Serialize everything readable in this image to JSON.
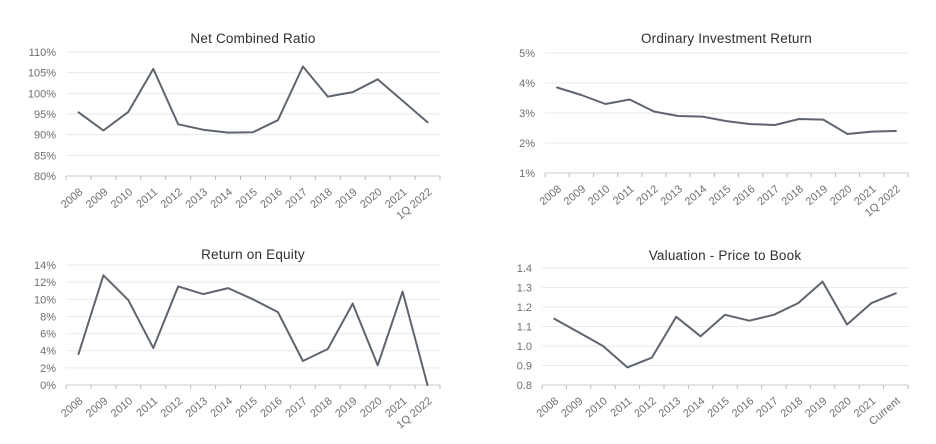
{
  "page": {
    "background": "#ffffff"
  },
  "styles": {
    "line_color": "#5e656e",
    "grid_color": "#e8eaeb",
    "axis_color": "#c9cccd",
    "tick_color": "#b6babc",
    "title_color": "#2e2e2e",
    "label_color": "#6f6f6f"
  },
  "chart_data": [
    {
      "type": "line",
      "title": "Net Combined Ratio",
      "categories": [
        "2008",
        "2009",
        "2010",
        "2011",
        "2012",
        "2013",
        "2014",
        "2015",
        "2016",
        "2017",
        "2018",
        "2019",
        "2020",
        "2021",
        "1Q 2022"
      ],
      "values": [
        95.4,
        91.0,
        95.5,
        105.9,
        92.5,
        91.2,
        90.5,
        90.6,
        93.5,
        106.5,
        99.2,
        100.3,
        103.4,
        98.2,
        93.0
      ],
      "xlabel": "",
      "ylabel": "",
      "ylim": [
        80,
        110
      ],
      "y_tick_values": [
        110,
        105,
        100,
        95,
        90,
        85,
        80
      ],
      "y_tick_labels": [
        "110%",
        "105%",
        "100%",
        "95%",
        "90%",
        "85%",
        "80%"
      ],
      "grid": true,
      "legend": "none"
    },
    {
      "type": "line",
      "title": "Ordinary Investment Return",
      "categories": [
        "2008",
        "2009",
        "2010",
        "2011",
        "2012",
        "2013",
        "2014",
        "2015",
        "2016",
        "2017",
        "2018",
        "2019",
        "2020",
        "2021",
        "1Q 2022"
      ],
      "values": [
        3.85,
        3.6,
        3.3,
        3.45,
        3.05,
        2.9,
        2.88,
        2.73,
        2.63,
        2.6,
        2.8,
        2.78,
        2.3,
        2.38,
        2.4
      ],
      "xlabel": "",
      "ylabel": "",
      "ylim": [
        1,
        5
      ],
      "y_tick_values": [
        5,
        4,
        3,
        2,
        1
      ],
      "y_tick_labels": [
        "5%",
        "4%",
        "3%",
        "2%",
        "1%"
      ],
      "grid": true,
      "legend": "none"
    },
    {
      "type": "line",
      "title": "Return on Equity",
      "categories": [
        "2008",
        "2009",
        "2010",
        "2011",
        "2012",
        "2013",
        "2014",
        "2015",
        "2016",
        "2017",
        "2018",
        "2019",
        "2020",
        "2021",
        "1Q 2022"
      ],
      "values": [
        3.6,
        12.8,
        9.9,
        4.3,
        11.5,
        10.6,
        11.3,
        10.0,
        8.5,
        2.8,
        4.2,
        9.5,
        2.3,
        10.9,
        0.0
      ],
      "xlabel": "",
      "ylabel": "",
      "ylim": [
        0,
        14
      ],
      "y_tick_values": [
        14,
        12,
        10,
        8,
        6,
        4,
        2,
        0
      ],
      "y_tick_labels": [
        "14%",
        "12%",
        "10%",
        "8%",
        "6%",
        "4%",
        "2%",
        "0%"
      ],
      "grid": true,
      "legend": "none"
    },
    {
      "type": "line",
      "title": "Valuation - Price to Book",
      "categories": [
        "2008",
        "2009",
        "2010",
        "2011",
        "2012",
        "2013",
        "2014",
        "2015",
        "2016",
        "2017",
        "2018",
        "2019",
        "2020",
        "2021",
        "Current"
      ],
      "values": [
        1.14,
        1.07,
        1.0,
        0.89,
        0.94,
        1.15,
        1.05,
        1.16,
        1.13,
        1.16,
        1.22,
        1.33,
        1.11,
        1.22,
        1.27
      ],
      "xlabel": "",
      "ylabel": "",
      "ylim": [
        0.8,
        1.4
      ],
      "y_tick_values": [
        1.4,
        1.3,
        1.2,
        1.1,
        1.0,
        0.9,
        0.8
      ],
      "y_tick_labels": [
        "1.4",
        "1.3",
        "1.2",
        "1.1",
        "1.0",
        "0.9",
        "0.8"
      ],
      "grid": true,
      "legend": "none"
    }
  ]
}
